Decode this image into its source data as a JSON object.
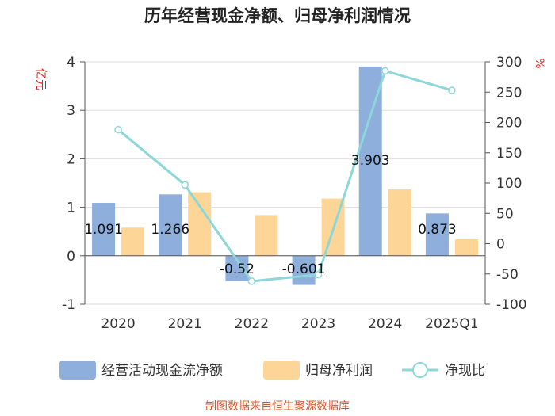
{
  "title": "历年经营现金净额、归母净利润情况",
  "source": "制图数据来自恒生聚源数据库",
  "chart_data": {
    "type": "bar",
    "categories": [
      "2020",
      "2021",
      "2022",
      "2023",
      "2024",
      "2025Q1"
    ],
    "y_left": {
      "unit": "亿元",
      "ticks": [
        "4",
        "3",
        "2",
        "1",
        "0",
        "-1"
      ],
      "range": [
        -1,
        4
      ]
    },
    "y_right": {
      "unit": "%",
      "ticks": [
        "300",
        "250",
        "200",
        "150",
        "100",
        "50",
        "0",
        "-50",
        "-100"
      ],
      "range": [
        -100,
        300
      ]
    },
    "series": [
      {
        "name": "经营活动现金流净额",
        "kind": "bar",
        "axis": "left",
        "color": "#8eaedc",
        "values": [
          1.091,
          1.266,
          -0.52,
          -0.601,
          3.903,
          0.873
        ],
        "labels": [
          "1.091",
          "1.266",
          "-0.52",
          "-0.601",
          "3.903",
          "0.873"
        ]
      },
      {
        "name": "归母净利润",
        "kind": "bar",
        "axis": "left",
        "color": "#fdd596",
        "values": [
          0.58,
          1.31,
          0.84,
          1.18,
          1.37,
          0.34
        ]
      },
      {
        "name": "净现比",
        "kind": "line",
        "axis": "right",
        "color": "#8cd7da",
        "values": [
          188,
          97,
          -62,
          -51,
          285,
          253
        ]
      }
    ],
    "grid": true,
    "legend": "bottom"
  }
}
